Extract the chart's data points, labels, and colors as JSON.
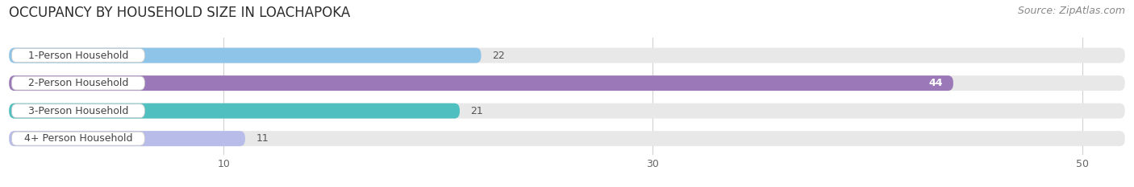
{
  "title": "OCCUPANCY BY HOUSEHOLD SIZE IN LOACHAPOKA",
  "source": "Source: ZipAtlas.com",
  "categories": [
    "1-Person Household",
    "2-Person Household",
    "3-Person Household",
    "4+ Person Household"
  ],
  "values": [
    22,
    44,
    21,
    11
  ],
  "bar_colors": [
    "#8ec4e8",
    "#9b79b8",
    "#50bfbf",
    "#b8bce8"
  ],
  "bar_bg_color": "#e8e8e8",
  "xlim_max": 52,
  "xticks": [
    10,
    30,
    50
  ],
  "figsize": [
    14.06,
    2.33
  ],
  "dpi": 100,
  "title_fontsize": 12,
  "source_fontsize": 9,
  "category_fontsize": 9,
  "value_fontsize": 9,
  "bg_color": "#ffffff"
}
